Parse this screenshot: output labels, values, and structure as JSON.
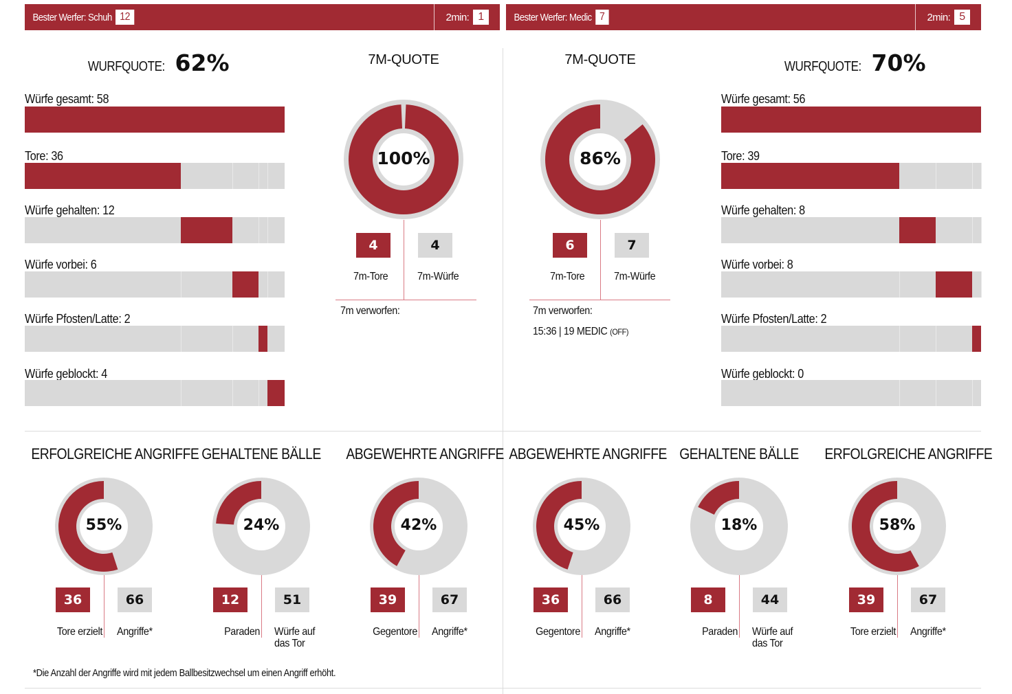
{
  "colors": {
    "accent": "#a12a33",
    "grey": "#d9d9d9",
    "line": "#d97a84",
    "divider": "#dcdcdc"
  },
  "teams": [
    {
      "header": {
        "best_thrower_label": "Bester Werfer: Schuh",
        "best_thrower_goals": "12",
        "two_min_label": "2min:",
        "two_min_value": "1"
      },
      "wurfquote": {
        "label": "WURFQUOTE:",
        "value": "62%"
      },
      "bars": {
        "total": {
          "label": "Würfe gesamt: 58",
          "value": 58
        },
        "items": [
          {
            "label": "Tore: 36",
            "value": 36
          },
          {
            "label": "Würfe gehalten: 12",
            "value": 12
          },
          {
            "label": "Würfe vorbei: 6",
            "value": 6
          },
          {
            "label": "Würfe Pfosten/Latte: 2",
            "value": 2
          },
          {
            "label": "Würfe geblockt: 4",
            "value": 4
          }
        ]
      },
      "seven_m": {
        "title": "7M-QUOTE",
        "percent_label": "100%",
        "percent": 100,
        "goals": "4",
        "goals_label": "7m-Tore",
        "attempts": "4",
        "attempts_label": "7m-Würfe",
        "missed_label": "7m verworfen:",
        "missed_entries": []
      },
      "donuts": [
        {
          "title": "ERFOLGREICHE ANGRIFFE",
          "percent_label": "55%",
          "percent": 55,
          "a": "36",
          "a_label": "Tore erzielt",
          "b": "66",
          "b_label": "Angriffe*"
        },
        {
          "title": "GEHALTENE BÄLLE",
          "percent_label": "24%",
          "percent": 24,
          "a": "12",
          "a_label": "Paraden",
          "b": "51",
          "b_label": "Würfe auf das Tor"
        },
        {
          "title": "ABGEWEHRTE ANGRIFFE",
          "percent_label": "42%",
          "percent": 42,
          "a": "39",
          "a_label": "Gegentore",
          "b": "67",
          "b_label": "Angriffe*"
        }
      ]
    },
    {
      "header": {
        "best_thrower_label": "Bester Werfer: Medic",
        "best_thrower_goals": "7",
        "two_min_label": "2min:",
        "two_min_value": "5"
      },
      "wurfquote": {
        "label": "WURFQUOTE:",
        "value": "70%"
      },
      "bars": {
        "total": {
          "label": "Würfe gesamt: 56",
          "value": 56
        },
        "items": [
          {
            "label": "Tore: 39",
            "value": 39
          },
          {
            "label": "Würfe gehalten: 8",
            "value": 8
          },
          {
            "label": "Würfe vorbei: 8",
            "value": 8
          },
          {
            "label": "Würfe Pfosten/Latte: 2",
            "value": 2
          },
          {
            "label": "Würfe geblockt: 0",
            "value": 0
          }
        ]
      },
      "seven_m": {
        "title": "7M-QUOTE",
        "percent_label": "86%",
        "percent": 86,
        "goals": "6",
        "goals_label": "7m-Tore",
        "attempts": "7",
        "attempts_label": "7m-Würfe",
        "missed_label": "7m verworfen:",
        "missed_entries": [
          {
            "text": "15:36 | 19 MEDIC",
            "tag": "(OFF)"
          }
        ]
      },
      "donuts": [
        {
          "title": "ABGEWEHRTE ANGRIFFE",
          "percent_label": "45%",
          "percent": 45,
          "a": "36",
          "a_label": "Gegentore",
          "b": "66",
          "b_label": "Angriffe*"
        },
        {
          "title": "GEHALTENE BÄLLE",
          "percent_label": "18%",
          "percent": 18,
          "a": "8",
          "a_label": "Paraden",
          "b": "44",
          "b_label": "Würfe auf das Tor"
        },
        {
          "title": "ERFOLGREICHE ANGRIFFE",
          "percent_label": "58%",
          "percent": 58,
          "a": "39",
          "a_label": "Tore erzielt",
          "b": "67",
          "b_label": "Angriffe*"
        }
      ]
    }
  ],
  "footnote": "*Die Anzahl der Angriffe wird mit jedem Ballbesitzwechsel um einen Angriff erhöht.",
  "chart_data": [
    {
      "type": "bar",
      "title": "WURFQUOTE: 62%",
      "categories": [
        "Würfe gesamt",
        "Tore",
        "Würfe gehalten",
        "Würfe vorbei",
        "Würfe Pfosten/Latte",
        "Würfe geblockt"
      ],
      "values": [
        58,
        36,
        12,
        6,
        2,
        4
      ]
    },
    {
      "type": "bar",
      "title": "WURFQUOTE: 70%",
      "categories": [
        "Würfe gesamt",
        "Tore",
        "Würfe gehalten",
        "Würfe vorbei",
        "Würfe Pfosten/Latte",
        "Würfe geblockt"
      ],
      "values": [
        56,
        39,
        8,
        8,
        2,
        0
      ]
    },
    {
      "type": "pie",
      "title": "7M-QUOTE",
      "categories": [
        "7m-Tore",
        "verworfen"
      ],
      "values": [
        100,
        0
      ]
    },
    {
      "type": "pie",
      "title": "7M-QUOTE",
      "categories": [
        "7m-Tore",
        "verworfen"
      ],
      "values": [
        86,
        14
      ]
    },
    {
      "type": "pie",
      "title": "ERFOLGREICHE ANGRIFFE",
      "values": [
        55,
        45
      ]
    },
    {
      "type": "pie",
      "title": "GEHALTENE BÄLLE",
      "values": [
        24,
        76
      ]
    },
    {
      "type": "pie",
      "title": "ABGEWEHRTE ANGRIFFE",
      "values": [
        42,
        58
      ]
    },
    {
      "type": "pie",
      "title": "ABGEWEHRTE ANGRIFFE",
      "values": [
        45,
        55
      ]
    },
    {
      "type": "pie",
      "title": "GEHALTENE BÄLLE",
      "values": [
        18,
        82
      ]
    },
    {
      "type": "pie",
      "title": "ERFOLGREICHE ANGRIFFE",
      "values": [
        58,
        42
      ]
    }
  ]
}
